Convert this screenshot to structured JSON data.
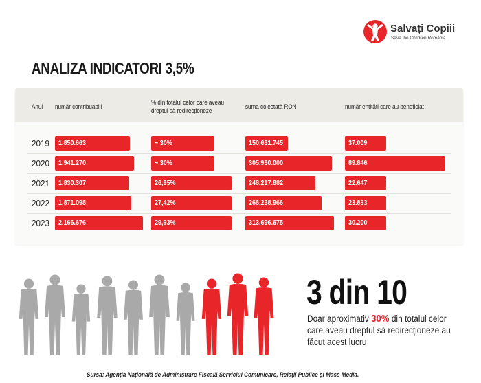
{
  "logo": {
    "name": "Salvați Copiii",
    "tagline": "Save the Children Romania"
  },
  "title": "ANALIZA INDICATORI 3,5%",
  "chart_data": {
    "type": "bar",
    "title": "ANALIZA INDICATORI 3,5%",
    "columns": [
      "Anul",
      "număr contribuabili",
      "% din totalul celor care aveau dreptul să redirecționeze",
      "suma colectată RON",
      "număr entități care au beneficiat"
    ],
    "categories": [
      "2019",
      "2020",
      "2021",
      "2022",
      "2023"
    ],
    "series": [
      {
        "name": "număr contribuabili",
        "values": [
          1850663,
          1941270,
          1830307,
          1871098,
          2166676
        ],
        "labels": [
          "1.850.663",
          "1.941.270",
          "1.830.307",
          "1.871.098",
          "2.166.676"
        ]
      },
      {
        "name": "% din totalul celor care aveau dreptul să redirecționeze",
        "values": [
          30,
          30,
          26.95,
          27.42,
          29.93
        ],
        "labels": [
          "~ 30%",
          "~ 30%",
          "26,95%",
          "27,42%",
          "29,93%"
        ]
      },
      {
        "name": "suma colectată RON",
        "values": [
          150631745,
          305930000,
          248217882,
          268238966,
          313696675
        ],
        "labels": [
          "150.631.745",
          "305.930.000",
          "248.217.882",
          "268.238.966",
          "313.696.675"
        ]
      },
      {
        "name": "număr entități care au beneficiat",
        "values": [
          37009,
          89846,
          22647,
          23833,
          30200
        ],
        "labels": [
          "37.009",
          "89.846",
          "22.647",
          "23.833",
          "30.200"
        ]
      }
    ]
  },
  "infographic": {
    "total_people": 10,
    "highlighted_people": 3,
    "stat": "3 din 10",
    "desc_before": "Doar aproximativ ",
    "desc_highlight": "30%",
    "desc_after": " din totalul celor care aveau dreptul să redirecționeze au făcut acest lucru"
  },
  "colors": {
    "accent": "#e8262a",
    "people_gray": "#a9a9a9",
    "header_bg": "#ecebe6"
  },
  "source": "Sursa: Agenția Națională de Administrare Fiscală Serviciul Comunicare, Relații Publice și Mass Media."
}
